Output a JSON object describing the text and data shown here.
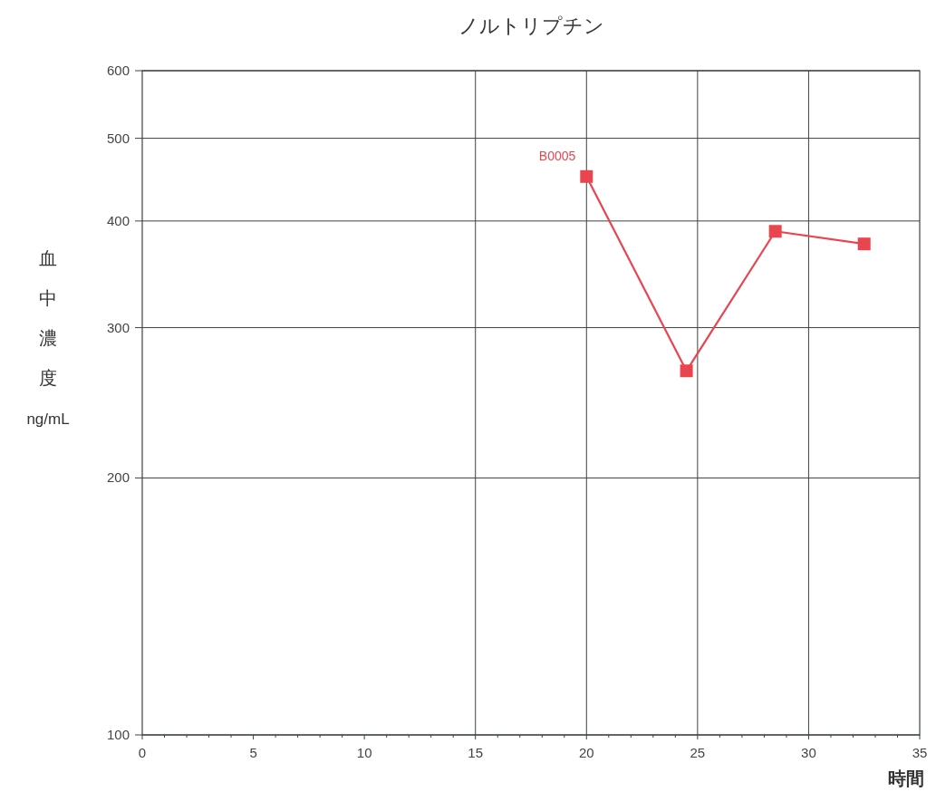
{
  "chart_data": {
    "type": "line",
    "title": "ノルトリプチン",
    "xlabel": "時間",
    "ylabel": "血中濃度 ng/mL",
    "x": [
      20,
      24.5,
      28.5,
      32.5
    ],
    "series": [
      {
        "name": "B0005",
        "color": "#e8454f",
        "values": [
          451,
          267,
          389,
          376
        ]
      }
    ],
    "xlim": [
      0,
      35
    ],
    "xticks": [
      0,
      5,
      10,
      15,
      20,
      25,
      30,
      35
    ],
    "ylim": [
      100,
      600
    ],
    "yticks": [
      100,
      200,
      300,
      400,
      500,
      600
    ],
    "log": "y",
    "grid": "y",
    "marker": "square",
    "line_style": "solid",
    "ref_lines": [
      {
        "axis": "x",
        "value": 15,
        "color": "#3a443e"
      },
      {
        "axis": "x",
        "value": 20,
        "color": "#3a443e"
      },
      {
        "axis": "x",
        "value": 25,
        "color": "#3a443e"
      },
      {
        "axis": "x",
        "value": 30,
        "color": "#3a443e"
      }
    ]
  }
}
